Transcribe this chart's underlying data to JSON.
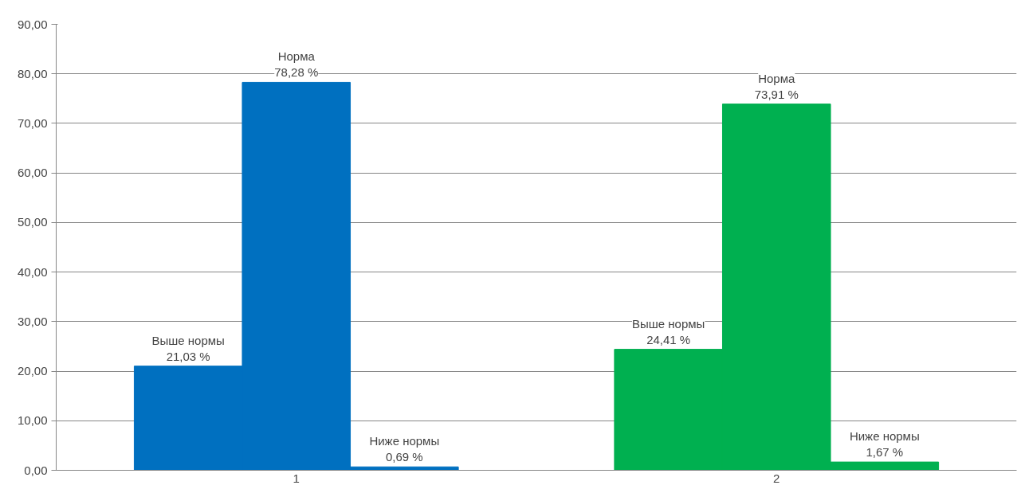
{
  "chart_data": {
    "type": "bar",
    "categories": [
      "1",
      "2"
    ],
    "series": [
      {
        "name": "Выше нормы",
        "colors": [
          "#0070c0",
          "#00b050"
        ],
        "values": [
          21.03,
          24.41
        ],
        "value_labels": [
          "21,03 %",
          "24,41 %"
        ]
      },
      {
        "name": "Норма",
        "colors": [
          "#0070c0",
          "#00b050"
        ],
        "values": [
          78.28,
          73.91
        ],
        "value_labels": [
          "78,28 %",
          "73,91 %"
        ]
      },
      {
        "name": "Ниже нормы",
        "colors": [
          "#0070c0",
          "#00b050"
        ],
        "values": [
          0.69,
          1.67
        ],
        "value_labels": [
          "0,69 %",
          "1,67 %"
        ]
      }
    ],
    "ylim": [
      0,
      90
    ],
    "yticks": [
      {
        "value": 0,
        "label": "0,00"
      },
      {
        "value": 10,
        "label": "10,00"
      },
      {
        "value": 20,
        "label": "20,00"
      },
      {
        "value": 30,
        "label": "30,00"
      },
      {
        "value": 40,
        "label": "40,00"
      },
      {
        "value": 50,
        "label": "50,00"
      },
      {
        "value": 60,
        "label": "60,00"
      },
      {
        "value": 70,
        "label": "70,00"
      },
      {
        "value": 80,
        "label": "80,00"
      },
      {
        "value": 90,
        "label": "90,00"
      }
    ],
    "grid": "y"
  }
}
